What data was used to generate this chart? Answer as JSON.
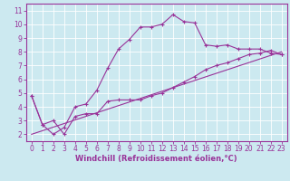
{
  "xlabel": "Windchill (Refroidissement éolien,°C)",
  "background_color": "#cce9f0",
  "grid_color": "#ffffff",
  "line_color": "#993399",
  "border_color": "#993399",
  "xlim": [
    -0.5,
    23.5
  ],
  "ylim": [
    1.5,
    11.5
  ],
  "xticks": [
    0,
    1,
    2,
    3,
    4,
    5,
    6,
    7,
    8,
    9,
    10,
    11,
    12,
    13,
    14,
    15,
    16,
    17,
    18,
    19,
    20,
    21,
    22,
    23
  ],
  "yticks": [
    2,
    3,
    4,
    5,
    6,
    7,
    8,
    9,
    10,
    11
  ],
  "line1_x": [
    0,
    1,
    2,
    3,
    4,
    5,
    6,
    7,
    8,
    9,
    10,
    11,
    12,
    13,
    14,
    15,
    16,
    17,
    18,
    19,
    20,
    21,
    22,
    23
  ],
  "line1_y": [
    4.8,
    2.7,
    3.0,
    2.0,
    3.3,
    3.5,
    3.5,
    4.4,
    4.5,
    4.5,
    4.5,
    4.8,
    5.0,
    5.4,
    5.8,
    6.2,
    6.7,
    7.0,
    7.2,
    7.5,
    7.8,
    7.9,
    8.1,
    7.8
  ],
  "line2_x": [
    0,
    1,
    2,
    3,
    4,
    5,
    6,
    7,
    8,
    9,
    10,
    11,
    12,
    13,
    14,
    15,
    16,
    17,
    18,
    19,
    20,
    21,
    22,
    23
  ],
  "line2_y": [
    4.8,
    2.7,
    2.0,
    2.5,
    4.0,
    4.2,
    5.2,
    6.8,
    8.2,
    8.9,
    9.8,
    9.8,
    10.0,
    10.7,
    10.2,
    10.1,
    8.5,
    8.4,
    8.5,
    8.2,
    8.2,
    8.2,
    7.9,
    7.8
  ],
  "line3_x": [
    0,
    23
  ],
  "line3_y": [
    2.0,
    8.0
  ],
  "tick_fontsize": 5.5,
  "xlabel_fontsize": 6.0,
  "marker": "+"
}
